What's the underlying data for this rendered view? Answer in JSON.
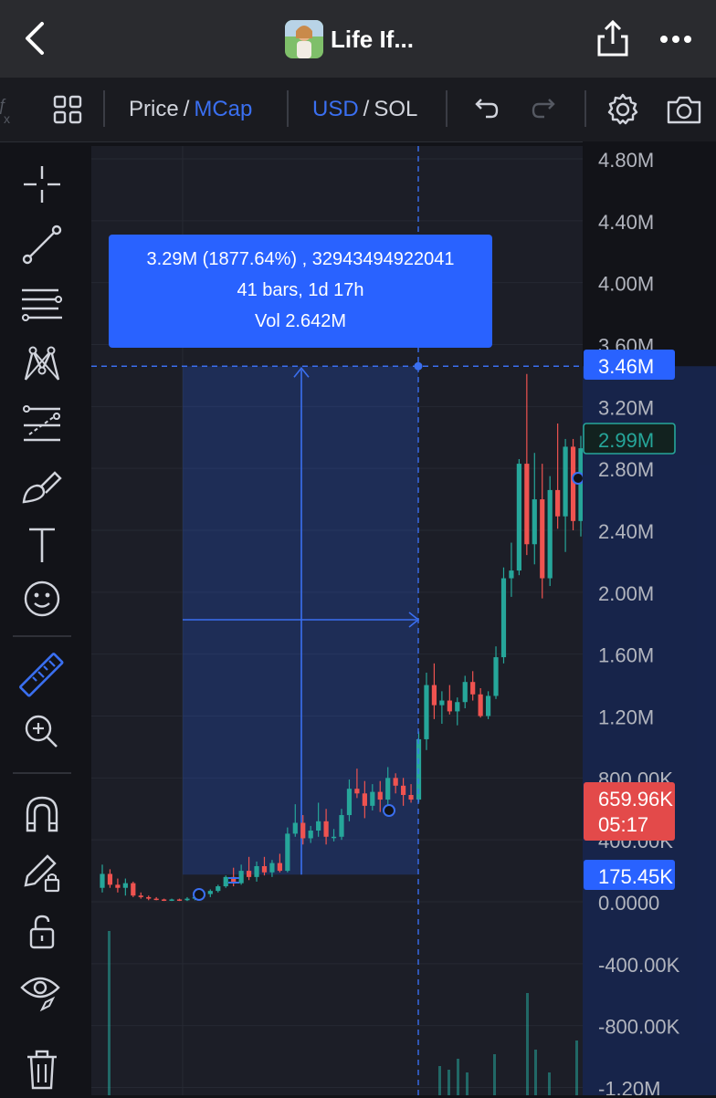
{
  "header": {
    "title": "Life If...",
    "back_icon": "chevron-left-icon",
    "share_icon": "share-icon",
    "more_icon": "more-icon"
  },
  "toolbar": {
    "price_label": "Price",
    "slash": "/",
    "mcap_label": "MCap",
    "usd_label": "USD",
    "slash2": "/",
    "sol_label": "SOL"
  },
  "sidebar": {
    "tools": [
      "crosshair-icon",
      "trend-line-icon",
      "fib-icon",
      "pattern-icon",
      "prediction-icon",
      "brush-icon",
      "text-icon",
      "emoji-icon",
      "ruler-icon",
      "zoom-icon",
      "magnet-icon",
      "lock-drawing-icon",
      "unlock-icon",
      "eye-icon",
      "trash-icon"
    ]
  },
  "measure": {
    "line1": "3.29M (1877.64%) , 32943494922041",
    "line2": "41 bars, 1d 17h",
    "line3": "Vol 2.642M"
  },
  "axis": {
    "ticks": [
      "4.80M",
      "4.40M",
      "4.00M",
      "3.60M",
      "3.20M",
      "2.80M",
      "2.40M",
      "2.00M",
      "1.60M",
      "1.20M",
      "800.00K",
      "400.00K",
      "0.0000",
      "-400.00K",
      "-800.00K",
      "-1.20M"
    ],
    "crosshair_label": "3.46M",
    "ma_label": "2.99M",
    "last_price": "659.96K",
    "countdown": "05:17",
    "low_label": "175.45K"
  },
  "colors": {
    "accent": "#2962ff",
    "up": "#26a69a",
    "down": "#ef5350"
  },
  "chart_data": {
    "type": "candlestick",
    "ylim": [
      -1200000,
      4800000
    ],
    "y_unit": "market cap USD",
    "candles": [
      [
        90000,
        240000,
        60000,
        180000
      ],
      [
        180000,
        210000,
        90000,
        110000
      ],
      [
        110000,
        150000,
        60000,
        90000
      ],
      [
        90000,
        150000,
        40000,
        120000
      ],
      [
        120000,
        130000,
        30000,
        40000
      ],
      [
        40000,
        60000,
        20000,
        30000
      ],
      [
        30000,
        40000,
        10000,
        20000
      ],
      [
        20000,
        30000,
        10000,
        15000
      ],
      [
        15000,
        20000,
        5000,
        10000
      ],
      [
        10000,
        20000,
        5000,
        15000
      ],
      [
        15000,
        20000,
        5000,
        10000
      ],
      [
        10000,
        30000,
        5000,
        20000
      ],
      [
        20000,
        40000,
        10000,
        30000
      ],
      [
        30000,
        60000,
        20000,
        50000
      ],
      [
        50000,
        80000,
        30000,
        70000
      ],
      [
        70000,
        110000,
        60000,
        100000
      ],
      [
        100000,
        170000,
        90000,
        160000
      ],
      [
        160000,
        220000,
        100000,
        120000
      ],
      [
        120000,
        240000,
        110000,
        200000
      ],
      [
        200000,
        290000,
        140000,
        160000
      ],
      [
        160000,
        260000,
        130000,
        230000
      ],
      [
        230000,
        290000,
        170000,
        190000
      ],
      [
        190000,
        270000,
        160000,
        250000
      ],
      [
        250000,
        310000,
        190000,
        200000
      ],
      [
        200000,
        480000,
        190000,
        440000
      ],
      [
        440000,
        630000,
        420000,
        510000
      ],
      [
        510000,
        560000,
        370000,
        410000
      ],
      [
        410000,
        490000,
        380000,
        460000
      ],
      [
        460000,
        640000,
        420000,
        520000
      ],
      [
        520000,
        600000,
        370000,
        420000
      ],
      [
        420000,
        470000,
        390000,
        420000
      ],
      [
        420000,
        600000,
        400000,
        560000
      ],
      [
        560000,
        790000,
        520000,
        730000
      ],
      [
        730000,
        860000,
        670000,
        700000
      ],
      [
        700000,
        780000,
        540000,
        620000
      ],
      [
        620000,
        760000,
        590000,
        710000
      ],
      [
        710000,
        780000,
        580000,
        660000
      ],
      [
        660000,
        870000,
        620000,
        800000
      ],
      [
        800000,
        830000,
        700000,
        750000
      ],
      [
        750000,
        800000,
        620000,
        690000
      ],
      [
        690000,
        760000,
        640000,
        660000
      ],
      [
        660000,
        1100000,
        640000,
        1050000
      ],
      [
        1050000,
        1480000,
        980000,
        1400000
      ],
      [
        1400000,
        1540000,
        1180000,
        1270000
      ],
      [
        1270000,
        1360000,
        1150000,
        1300000
      ],
      [
        1300000,
        1400000,
        1210000,
        1230000
      ],
      [
        1230000,
        1320000,
        1140000,
        1290000
      ],
      [
        1290000,
        1460000,
        1250000,
        1420000
      ],
      [
        1420000,
        1490000,
        1300000,
        1340000
      ],
      [
        1340000,
        1380000,
        1190000,
        1200000
      ],
      [
        1200000,
        1360000,
        1180000,
        1330000
      ],
      [
        1330000,
        1650000,
        1310000,
        1580000
      ],
      [
        1580000,
        2160000,
        1540000,
        2090000
      ],
      [
        2090000,
        2320000,
        1970000,
        2140000
      ],
      [
        2140000,
        2860000,
        2110000,
        2830000
      ],
      [
        2830000,
        3410000,
        2240000,
        2310000
      ],
      [
        2310000,
        2900000,
        2180000,
        2600000
      ],
      [
        2600000,
        2830000,
        1960000,
        2090000
      ],
      [
        2090000,
        2750000,
        2040000,
        2660000
      ],
      [
        2660000,
        3090000,
        2410000,
        2490000
      ],
      [
        2490000,
        2990000,
        2260000,
        2940000
      ],
      [
        2940000,
        2990000,
        2400000,
        2460000
      ],
      [
        2460000,
        3010000,
        2360000,
        2930000
      ]
    ],
    "volume_bars_visible": true
  }
}
